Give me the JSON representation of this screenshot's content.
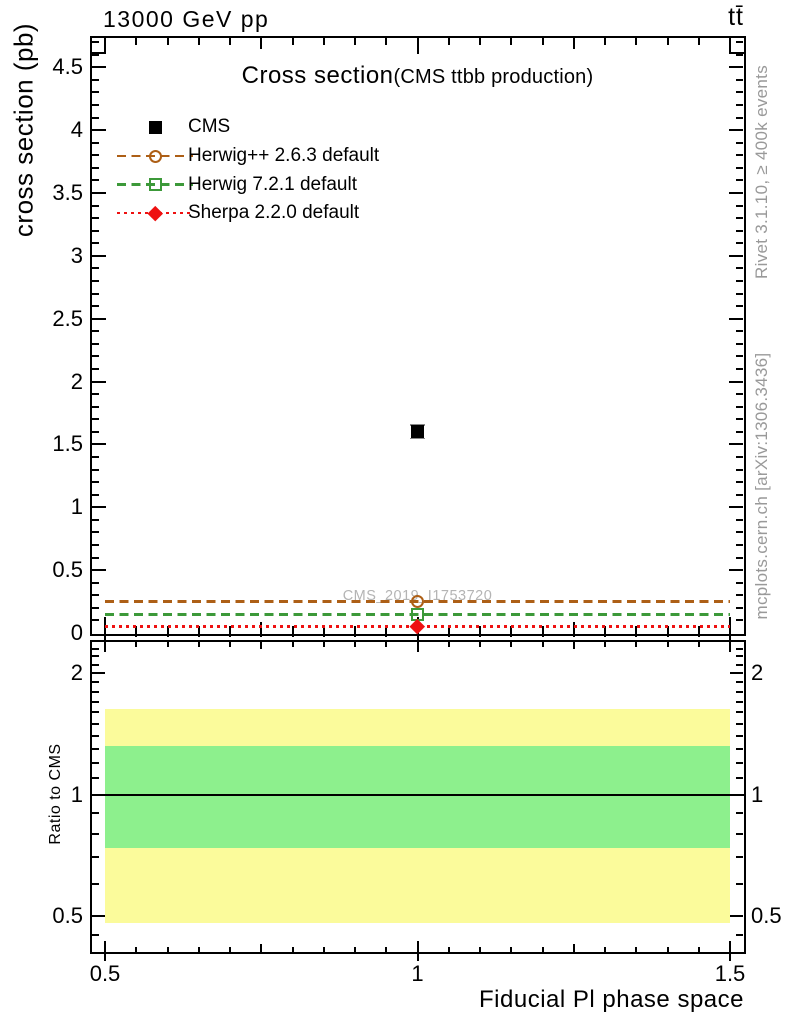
{
  "header": {
    "beam": "13000 GeV pp",
    "process": "tt̄"
  },
  "titles": {
    "main": "Cross section",
    "sub": "(CMS ttbb production)",
    "watermark": "CMS_2019_I1753720",
    "y_axis": "cross section (pb)",
    "ratio_y_axis": "Ratio to CMS",
    "x_axis": "Fiducial Pl phase space"
  },
  "side_notes": {
    "top": "Rivet 3.1.10, ≥ 400k events",
    "bottom": "mcplots.cern.ch [arXiv:1306.3436]"
  },
  "legend": [
    {
      "label": "CMS",
      "marker": "filled-square",
      "color": "#000000",
      "line": "none"
    },
    {
      "label": "Herwig++ 2.6.3 default",
      "marker": "open-circle",
      "color": "#ad5f16",
      "line": "dashed"
    },
    {
      "label": "Herwig 7.2.1 default",
      "marker": "open-square",
      "color": "#3c9939",
      "line": "dashed"
    },
    {
      "label": "Sherpa 2.2.0 default",
      "marker": "filled-diamond",
      "color": "#ee1111",
      "line": "dotted"
    }
  ],
  "chart_data": {
    "type": "scatter",
    "title": "Cross section (CMS ttbb production)",
    "xlabel": "Fiducial Pl phase space",
    "ylabel": "cross section (pb)",
    "xlim": [
      0.5,
      1.5
    ],
    "ylim": [
      0,
      4.74
    ],
    "x_ticks": [
      0.5,
      1,
      1.5
    ],
    "y_tick_labels": [
      0,
      0.5,
      1,
      1.5,
      2,
      2.5,
      3,
      3.5,
      4,
      4.5
    ],
    "grid": false,
    "legend_position": "upper-left",
    "series": [
      {
        "name": "CMS",
        "x": [
          1
        ],
        "values": [
          1.6
        ],
        "marker": "filled-square",
        "color": "#000000",
        "line": "none"
      },
      {
        "name": "Herwig++ 2.6.3 default",
        "x": [
          1
        ],
        "values": [
          0.25
        ],
        "marker": "open-circle",
        "color": "#ad5f16",
        "line": "dashed"
      },
      {
        "name": "Herwig 7.2.1 default",
        "x": [
          1
        ],
        "values": [
          0.15
        ],
        "marker": "open-square",
        "color": "#3c9939",
        "line": "dashed"
      },
      {
        "name": "Sherpa 2.2.0 default",
        "x": [
          1
        ],
        "values": [
          0.05
        ],
        "marker": "filled-diamond",
        "color": "#ee1111",
        "line": "dotted"
      }
    ],
    "ratio_panel": {
      "ylabel": "Ratio to CMS",
      "scale": "log",
      "ylim": [
        0.41,
        2.4
      ],
      "y_ticks": [
        0.5,
        1,
        2
      ],
      "reference_line": 1,
      "bands": [
        {
          "name": "outer-uncertainty-band",
          "color": "#fbfb9b",
          "lo": 0.48,
          "hi": 1.63
        },
        {
          "name": "inner-uncertainty-band",
          "color": "#8df08d",
          "lo": 0.74,
          "hi": 1.32
        }
      ]
    }
  }
}
